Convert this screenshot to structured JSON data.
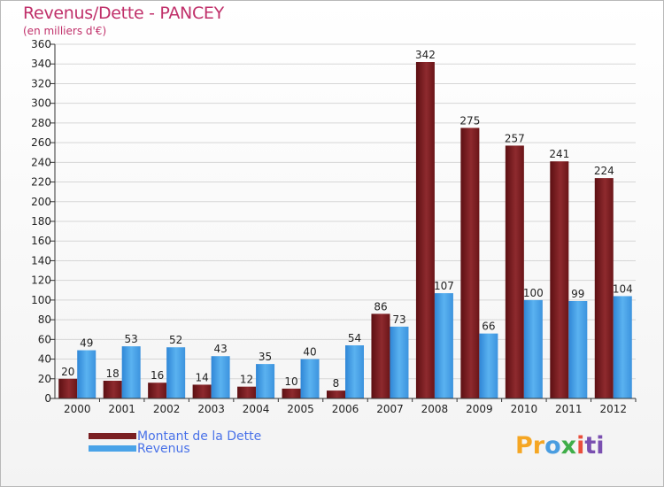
{
  "title": "Revenus/Dette - PANCEY",
  "subtitle": "(en milliers d'€)",
  "chart_data": {
    "type": "bar",
    "title": "Revenus/Dette - PANCEY",
    "ylabel": "(en milliers d'€)",
    "xlabel": "",
    "ylim": [
      0,
      360
    ],
    "ytick_step": 20,
    "grid": true,
    "categories": [
      "2000",
      "2001",
      "2002",
      "2003",
      "2004",
      "2005",
      "2006",
      "2007",
      "2008",
      "2009",
      "2010",
      "2011",
      "2012"
    ],
    "series": [
      {
        "name": "Montant de la Dette",
        "color": "#7a1f22",
        "values": [
          20,
          18,
          16,
          14,
          12,
          10,
          8,
          86,
          342,
          275,
          257,
          241,
          224
        ]
      },
      {
        "name": "Revenus",
        "color": "#4aa3e8",
        "values": [
          49,
          53,
          52,
          43,
          35,
          40,
          54,
          73,
          107,
          66,
          100,
          99,
          104
        ]
      }
    ],
    "legend_position": "bottom-left"
  },
  "legend": {
    "items": [
      {
        "label": "Montant de la Dette",
        "color": "#7a1f22"
      },
      {
        "label": "Revenus",
        "color": "#4aa3e8"
      }
    ]
  },
  "logo": {
    "l1": "Pr",
    "l2": "o",
    "l3": "x",
    "l4": "i",
    "l5": "ti"
  }
}
